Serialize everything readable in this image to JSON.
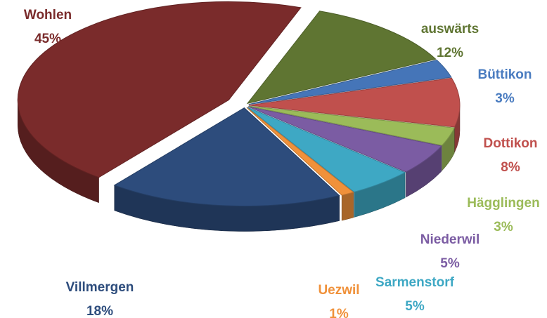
{
  "chart_data": {
    "type": "pie3d",
    "categories": [
      "auswärts",
      "Büttikon",
      "Dottikon",
      "Hägglingen",
      "Niederwil",
      "Sarmenstorf",
      "Uezwil",
      "Villmergen",
      "Wohlen"
    ],
    "values": [
      12,
      3,
      8,
      3,
      5,
      5,
      1,
      18,
      45
    ],
    "value_labels": [
      "12%",
      "3%",
      "8%",
      "3%",
      "5%",
      "5%",
      "1%",
      "18%",
      "45%"
    ],
    "colors": [
      "#5f7532",
      "#4575b8",
      "#c0504d",
      "#9bbb59",
      "#7b5ca3",
      "#3ea8c4",
      "#f0913a",
      "#2d4c7c",
      "#7a2b2b"
    ],
    "label_colors": [
      "#5f7532",
      "#4a7cc0",
      "#c0504d",
      "#9bbb59",
      "#7b5ca3",
      "#3ea8c4",
      "#f0913a",
      "#2d4c7c",
      "#7a2b2b"
    ]
  }
}
